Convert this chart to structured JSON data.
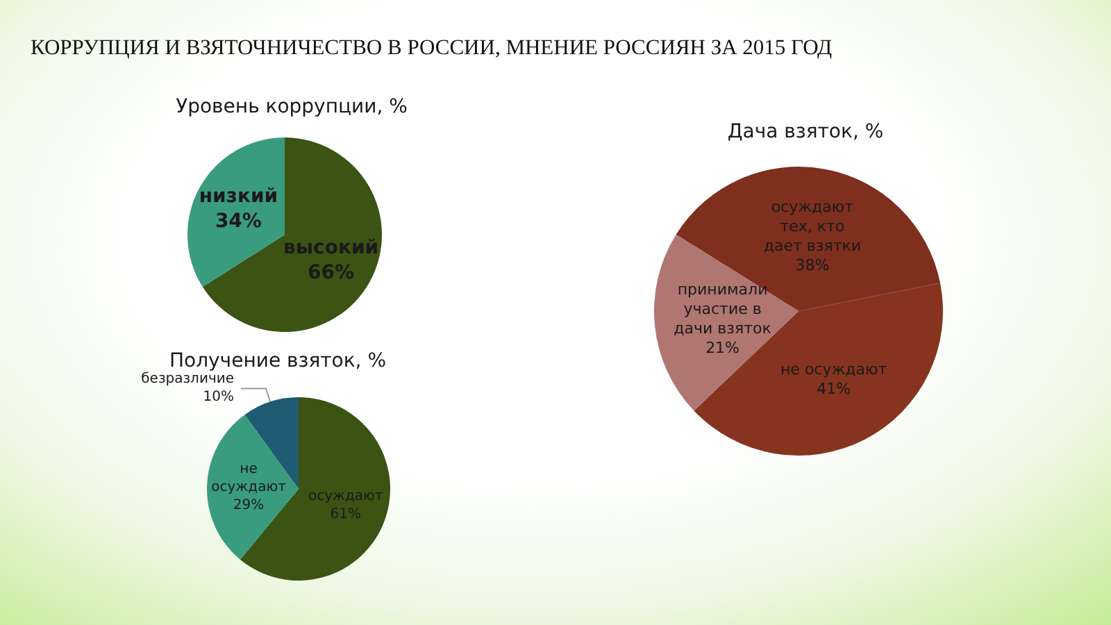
{
  "chart_data": [
    {
      "type": "other",
      "title": "КОРРУПЦИЯ И ВЗЯТОЧНИЧЕСТВО В РОССИИ, МНЕНИЕ РОССИЯН ЗА 2015 ГОД"
    },
    {
      "type": "pie",
      "title": "Уровень коррупции, %",
      "categories": [
        "высокий",
        "низкий"
      ],
      "values": [
        66,
        34
      ],
      "value_labels": [
        "66%",
        "34%"
      ],
      "colors": [
        "#3b5313",
        "#3a9c7e"
      ]
    },
    {
      "type": "pie",
      "title": "Дача взяток, %",
      "categories": [
        "осуждают тех, кто дает взятки",
        "не осуждают",
        "принимали участие в дачи взяток"
      ],
      "values": [
        38,
        41,
        21
      ],
      "value_labels": [
        "38%",
        "41%",
        "21%"
      ],
      "colors": [
        "#7e2f1e",
        "#86341f",
        "#b07672"
      ]
    },
    {
      "type": "pie",
      "title": "Получение взяток, %",
      "categories": [
        "осуждают",
        "не осуждают",
        "безразличие"
      ],
      "values": [
        61,
        29,
        10
      ],
      "value_labels": [
        "61%",
        "29%",
        "10%"
      ],
      "colors": [
        "#3b5313",
        "#3a9c7e",
        "#1f5c73"
      ]
    }
  ]
}
